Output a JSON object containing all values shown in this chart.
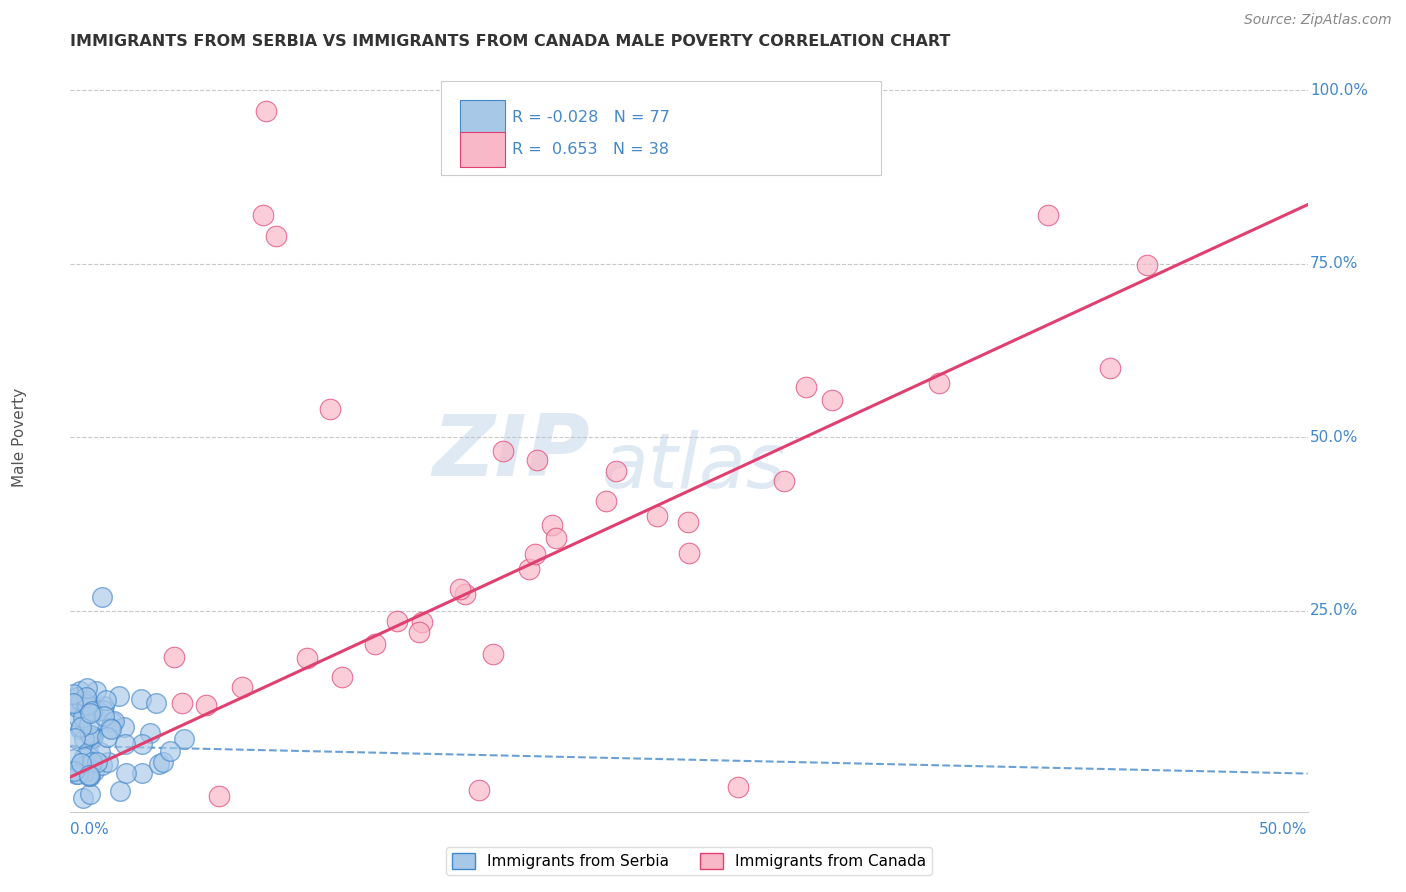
{
  "title": "IMMIGRANTS FROM SERBIA VS IMMIGRANTS FROM CANADA MALE POVERTY CORRELATION CHART",
  "source_text": "Source: ZipAtlas.com",
  "xlim": [
    0.0,
    0.5
  ],
  "ylim": [
    -0.04,
    1.04
  ],
  "serbia_R": -0.028,
  "serbia_N": 77,
  "canada_R": 0.653,
  "canada_N": 38,
  "serbia_color": "#a8c8e8",
  "serbia_edge_color": "#4488cc",
  "canada_color": "#f8b8c8",
  "canada_edge_color": "#e04070",
  "serbia_trend_color": "#4488cc",
  "canada_trend_color": "#e04070",
  "legend_label_serbia": "Immigrants from Serbia",
  "legend_label_canada": "Immigrants from Canada",
  "watermark_zip": "ZIP",
  "watermark_atlas": "atlas",
  "background_color": "#ffffff",
  "grid_color": "#bbbbbb",
  "title_color": "#333333",
  "axis_label_color": "#4488cc",
  "serbia_trend_intercept": 0.055,
  "serbia_trend_slope": -0.08,
  "canada_trend_intercept": 0.01,
  "canada_trend_slope": 1.65
}
